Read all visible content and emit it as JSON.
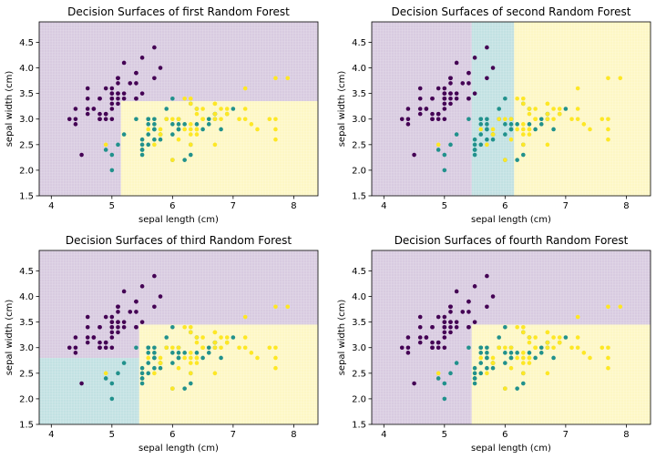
{
  "chart_data": [
    {
      "type": "scatter",
      "title": "Decision Surfaces of first Random Forest",
      "xlabel": "sepal length (cm)",
      "ylabel": "sepal width (cm)",
      "xlim": [
        3.8,
        8.4
      ],
      "ylim": [
        1.5,
        4.9
      ],
      "xticks": [
        4,
        5,
        6,
        7,
        8
      ],
      "yticks": [
        1.5,
        2.0,
        2.5,
        3.0,
        3.5,
        4.0,
        4.5
      ],
      "grid": false,
      "regions": [
        {
          "class": 0,
          "x": [
            3.8,
            8.4
          ],
          "y": [
            3.35,
            4.9
          ]
        },
        {
          "class": 0,
          "x": [
            3.8,
            5.15
          ],
          "y": [
            1.5,
            3.35
          ]
        },
        {
          "class": 2,
          "x": [
            5.15,
            8.4
          ],
          "y": [
            1.5,
            3.35
          ]
        }
      ]
    },
    {
      "type": "scatter",
      "title": "Decision Surfaces of second Random Forest",
      "xlabel": "sepal length (cm)",
      "ylabel": "sepal width (cm)",
      "xlim": [
        3.8,
        8.4
      ],
      "ylim": [
        1.5,
        4.9
      ],
      "xticks": [
        4,
        5,
        6,
        7,
        8
      ],
      "yticks": [
        1.5,
        2.0,
        2.5,
        3.0,
        3.5,
        4.0,
        4.5
      ],
      "grid": false,
      "regions": [
        {
          "class": 0,
          "x": [
            3.8,
            5.45
          ],
          "y": [
            1.5,
            4.9
          ]
        },
        {
          "class": 1,
          "x": [
            5.45,
            6.15
          ],
          "y": [
            1.5,
            4.9
          ]
        },
        {
          "class": 2,
          "x": [
            6.15,
            8.4
          ],
          "y": [
            1.5,
            4.9
          ]
        }
      ]
    },
    {
      "type": "scatter",
      "title": "Decision Surfaces of third Random Forest",
      "xlabel": "sepal length (cm)",
      "ylabel": "sepal width (cm)",
      "xlim": [
        3.8,
        8.4
      ],
      "ylim": [
        1.5,
        4.9
      ],
      "xticks": [
        4,
        5,
        6,
        7,
        8
      ],
      "yticks": [
        1.5,
        2.0,
        2.5,
        3.0,
        3.5,
        4.0,
        4.5
      ],
      "grid": false,
      "regions": [
        {
          "class": 0,
          "x": [
            3.8,
            8.4
          ],
          "y": [
            3.45,
            4.9
          ]
        },
        {
          "class": 0,
          "x": [
            3.8,
            5.45
          ],
          "y": [
            2.8,
            3.45
          ]
        },
        {
          "class": 1,
          "x": [
            3.8,
            5.45
          ],
          "y": [
            1.5,
            2.8
          ]
        },
        {
          "class": 2,
          "x": [
            5.45,
            8.4
          ],
          "y": [
            1.5,
            3.45
          ]
        }
      ]
    },
    {
      "type": "scatter",
      "title": "Decision Surfaces of fourth Random Forest",
      "xlabel": "sepal length (cm)",
      "ylabel": "sepal width (cm)",
      "xlim": [
        3.8,
        8.4
      ],
      "ylim": [
        1.5,
        4.9
      ],
      "xticks": [
        4,
        5,
        6,
        7,
        8
      ],
      "yticks": [
        1.5,
        2.0,
        2.5,
        3.0,
        3.5,
        4.0,
        4.5
      ],
      "grid": false,
      "regions": [
        {
          "class": 0,
          "x": [
            3.8,
            8.4
          ],
          "y": [
            3.45,
            4.9
          ]
        },
        {
          "class": 0,
          "x": [
            3.8,
            5.45
          ],
          "y": [
            1.5,
            3.45
          ]
        },
        {
          "class": 2,
          "x": [
            5.45,
            8.4
          ],
          "y": [
            1.5,
            3.45
          ]
        }
      ]
    }
  ],
  "class_colors": [
    "#440154",
    "#21918c",
    "#fde725"
  ],
  "region_colors": [
    "#d8cbe0",
    "#c2e1e2",
    "#fdf7c5"
  ],
  "points": [
    [
      5.1,
      3.5,
      0
    ],
    [
      4.9,
      3.0,
      0
    ],
    [
      4.7,
      3.2,
      0
    ],
    [
      4.6,
      3.1,
      0
    ],
    [
      5.0,
      3.6,
      0
    ],
    [
      5.4,
      3.9,
      0
    ],
    [
      4.6,
      3.4,
      0
    ],
    [
      5.0,
      3.4,
      0
    ],
    [
      4.4,
      2.9,
      0
    ],
    [
      4.9,
      3.1,
      0
    ],
    [
      5.4,
      3.7,
      0
    ],
    [
      4.8,
      3.4,
      0
    ],
    [
      4.8,
      3.0,
      0
    ],
    [
      4.3,
      3.0,
      0
    ],
    [
      5.8,
      4.0,
      0
    ],
    [
      5.7,
      4.4,
      0
    ],
    [
      5.4,
      3.9,
      0
    ],
    [
      5.1,
      3.5,
      0
    ],
    [
      5.7,
      3.8,
      0
    ],
    [
      5.1,
      3.8,
      0
    ],
    [
      5.4,
      3.4,
      0
    ],
    [
      5.1,
      3.7,
      0
    ],
    [
      4.6,
      3.6,
      0
    ],
    [
      5.1,
      3.3,
      0
    ],
    [
      4.8,
      3.4,
      0
    ],
    [
      5.0,
      3.0,
      0
    ],
    [
      5.0,
      3.4,
      0
    ],
    [
      5.2,
      3.5,
      0
    ],
    [
      5.2,
      3.4,
      0
    ],
    [
      4.7,
      3.2,
      0
    ],
    [
      4.8,
      3.1,
      0
    ],
    [
      5.4,
      3.4,
      0
    ],
    [
      5.2,
      4.1,
      0
    ],
    [
      5.5,
      4.2,
      0
    ],
    [
      4.9,
      3.1,
      0
    ],
    [
      5.0,
      3.2,
      0
    ],
    [
      5.5,
      3.5,
      0
    ],
    [
      4.9,
      3.6,
      0
    ],
    [
      4.4,
      3.0,
      0
    ],
    [
      5.1,
      3.4,
      0
    ],
    [
      5.0,
      3.5,
      0
    ],
    [
      4.5,
      2.3,
      0
    ],
    [
      4.4,
      3.2,
      0
    ],
    [
      5.0,
      3.5,
      0
    ],
    [
      5.1,
      3.8,
      0
    ],
    [
      4.8,
      3.0,
      0
    ],
    [
      5.1,
      3.8,
      0
    ],
    [
      4.6,
      3.2,
      0
    ],
    [
      5.3,
      3.7,
      0
    ],
    [
      5.0,
      3.3,
      0
    ],
    [
      7.0,
      3.2,
      1
    ],
    [
      6.4,
      3.2,
      1
    ],
    [
      6.9,
      3.1,
      1
    ],
    [
      5.5,
      2.3,
      1
    ],
    [
      6.5,
      2.8,
      1
    ],
    [
      5.7,
      2.8,
      1
    ],
    [
      6.3,
      3.3,
      1
    ],
    [
      4.9,
      2.4,
      1
    ],
    [
      6.6,
      2.9,
      1
    ],
    [
      5.2,
      2.7,
      1
    ],
    [
      5.0,
      2.0,
      1
    ],
    [
      5.9,
      3.0,
      1
    ],
    [
      6.0,
      2.2,
      1
    ],
    [
      6.1,
      2.9,
      1
    ],
    [
      5.6,
      2.9,
      1
    ],
    [
      6.7,
      3.1,
      1
    ],
    [
      5.6,
      3.0,
      1
    ],
    [
      5.8,
      2.7,
      1
    ],
    [
      6.2,
      2.2,
      1
    ],
    [
      5.6,
      2.5,
      1
    ],
    [
      5.9,
      3.2,
      1
    ],
    [
      6.1,
      2.8,
      1
    ],
    [
      6.3,
      2.5,
      1
    ],
    [
      6.1,
      2.8,
      1
    ],
    [
      6.4,
      2.9,
      1
    ],
    [
      6.6,
      3.0,
      1
    ],
    [
      6.8,
      2.8,
      1
    ],
    [
      6.7,
      3.0,
      1
    ],
    [
      6.0,
      2.9,
      1
    ],
    [
      5.7,
      2.6,
      1
    ],
    [
      5.5,
      2.4,
      1
    ],
    [
      5.5,
      2.4,
      1
    ],
    [
      5.8,
      2.7,
      1
    ],
    [
      6.0,
      2.7,
      1
    ],
    [
      5.4,
      3.0,
      1
    ],
    [
      6.0,
      3.4,
      1
    ],
    [
      6.7,
      3.1,
      1
    ],
    [
      6.3,
      2.3,
      1
    ],
    [
      5.6,
      3.0,
      1
    ],
    [
      5.5,
      2.5,
      1
    ],
    [
      5.5,
      2.6,
      1
    ],
    [
      6.1,
      3.0,
      1
    ],
    [
      5.8,
      2.6,
      1
    ],
    [
      5.0,
      2.3,
      1
    ],
    [
      5.6,
      2.7,
      1
    ],
    [
      5.7,
      3.0,
      1
    ],
    [
      5.7,
      2.9,
      1
    ],
    [
      6.2,
      2.9,
      1
    ],
    [
      5.1,
      2.5,
      1
    ],
    [
      5.7,
      2.8,
      1
    ],
    [
      6.3,
      3.3,
      2
    ],
    [
      5.8,
      2.7,
      2
    ],
    [
      7.1,
      3.0,
      2
    ],
    [
      6.3,
      2.9,
      2
    ],
    [
      6.5,
      3.0,
      2
    ],
    [
      7.6,
      3.0,
      2
    ],
    [
      4.9,
      2.5,
      2
    ],
    [
      7.3,
      2.9,
      2
    ],
    [
      6.7,
      2.5,
      2
    ],
    [
      7.2,
      3.6,
      2
    ],
    [
      6.5,
      3.2,
      2
    ],
    [
      6.4,
      2.7,
      2
    ],
    [
      6.8,
      3.0,
      2
    ],
    [
      5.7,
      2.5,
      2
    ],
    [
      5.8,
      2.8,
      2
    ],
    [
      6.4,
      3.2,
      2
    ],
    [
      6.5,
      3.0,
      2
    ],
    [
      7.7,
      3.8,
      2
    ],
    [
      7.7,
      2.6,
      2
    ],
    [
      6.0,
      2.2,
      2
    ],
    [
      6.9,
      3.2,
      2
    ],
    [
      5.6,
      2.8,
      2
    ],
    [
      7.7,
      2.8,
      2
    ],
    [
      6.3,
      2.7,
      2
    ],
    [
      6.7,
      3.3,
      2
    ],
    [
      7.2,
      3.2,
      2
    ],
    [
      6.2,
      2.8,
      2
    ],
    [
      6.1,
      3.0,
      2
    ],
    [
      6.4,
      2.8,
      2
    ],
    [
      7.2,
      3.0,
      2
    ],
    [
      7.4,
      2.8,
      2
    ],
    [
      7.9,
      3.8,
      2
    ],
    [
      6.4,
      2.8,
      2
    ],
    [
      6.3,
      2.8,
      2
    ],
    [
      6.1,
      2.6,
      2
    ],
    [
      7.7,
      3.0,
      2
    ],
    [
      6.3,
      3.4,
      2
    ],
    [
      6.4,
      3.1,
      2
    ],
    [
      6.0,
      3.0,
      2
    ],
    [
      6.9,
      3.1,
      2
    ],
    [
      6.7,
      3.1,
      2
    ],
    [
      6.9,
      3.1,
      2
    ],
    [
      5.8,
      2.7,
      2
    ],
    [
      6.8,
      3.2,
      2
    ],
    [
      6.7,
      3.3,
      2
    ],
    [
      6.7,
      3.0,
      2
    ],
    [
      6.3,
      2.5,
      2
    ],
    [
      6.5,
      3.0,
      2
    ],
    [
      6.2,
      3.4,
      2
    ],
    [
      5.9,
      3.0,
      2
    ]
  ]
}
